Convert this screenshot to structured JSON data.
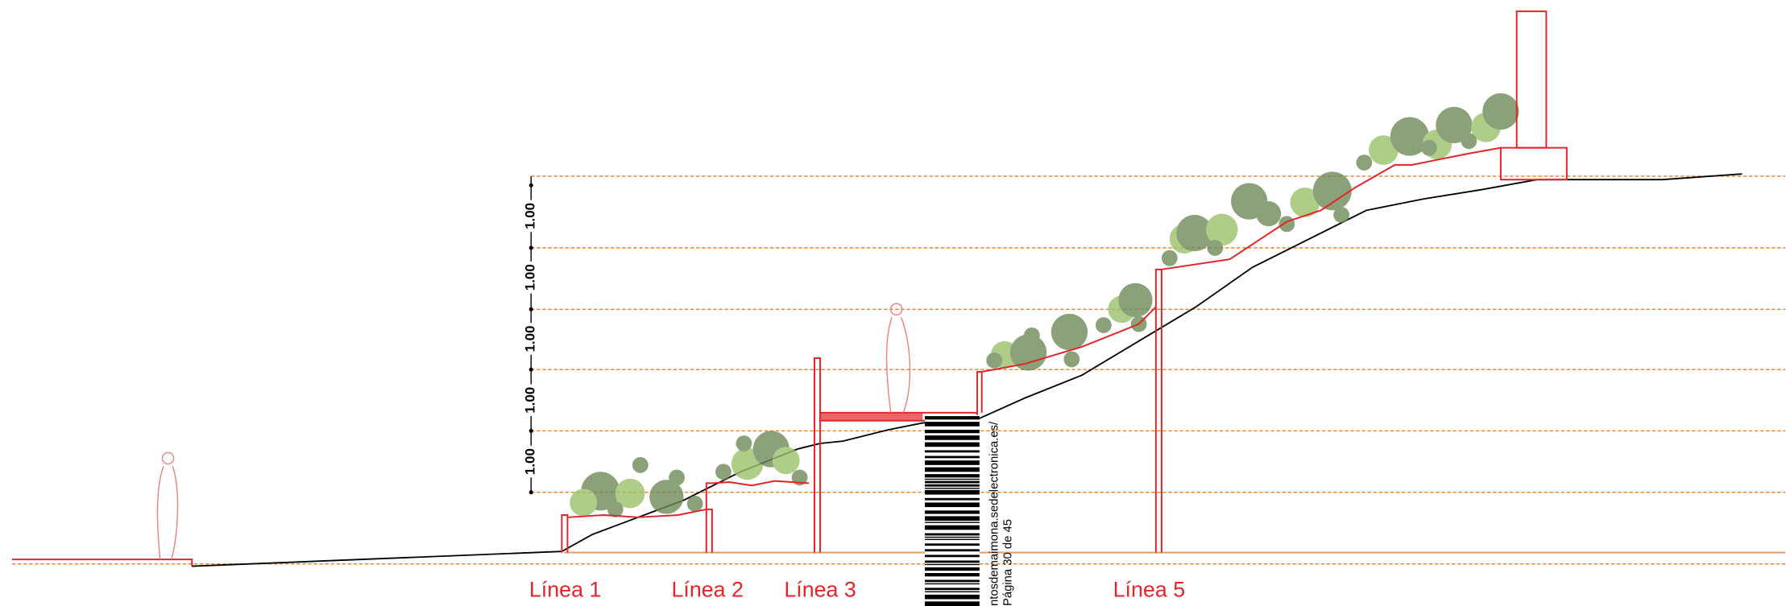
{
  "dimension_labels": [
    "1.00",
    "1.00",
    "1.00",
    "1.00",
    "1.00"
  ],
  "line_labels": [
    "Línea 1",
    "Línea 2",
    "Línea 3",
    "Línea 5"
  ],
  "stamp": {
    "url": "ntosdemaimona.sedelectronica.es/",
    "page": "Página 30 de 45"
  }
}
